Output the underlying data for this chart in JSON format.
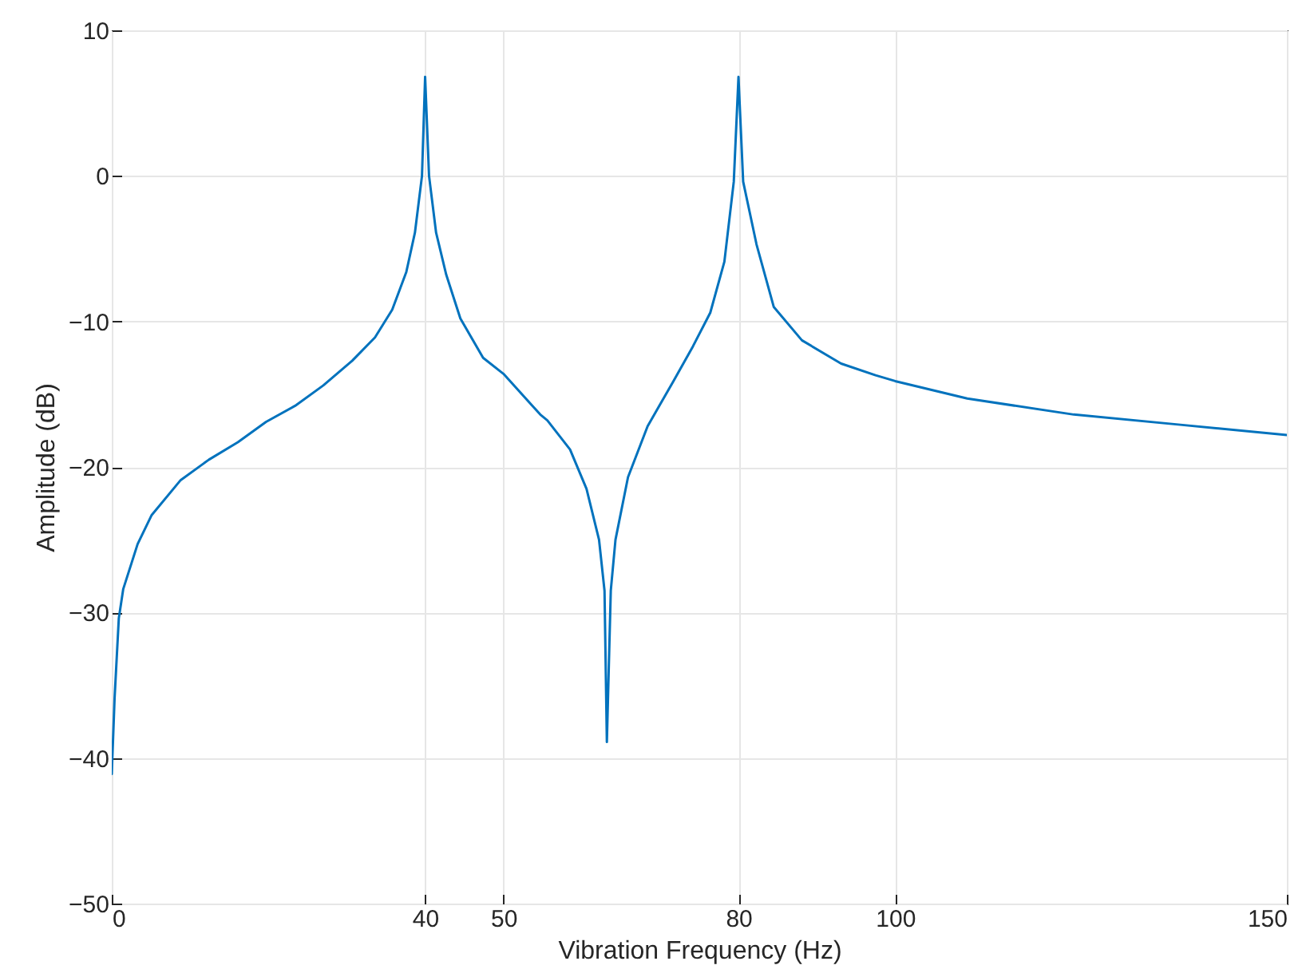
{
  "chart_data": {
    "type": "line",
    "xlabel": "Vibration Frequency (Hz)",
    "ylabel": "Amplitude (dB)",
    "x": [
      0,
      0.36,
      0.9,
      1.46,
      3.3,
      5.1,
      8.8,
      12.4,
      16.1,
      19.7,
      23.4,
      27,
      30.7,
      33.6,
      35.8,
      37.6,
      38.7,
      39.6,
      40,
      40.5,
      41.4,
      42.7,
      44.5,
      47.4,
      50,
      54.7,
      55.6,
      58.5,
      60.6,
      62.2,
      62.9,
      63.2,
      63.7,
      64.3,
      65.9,
      68.4,
      71.7,
      74.2,
      76.4,
      78.2,
      79.4,
      80,
      80.6,
      82.3,
      84.5,
      88.1,
      93.1,
      97.5,
      100,
      109.2,
      122.8,
      136.4,
      150
    ],
    "series": [
      {
        "color": "#0072bd",
        "values": [
          -41.1,
          -35.9,
          -30.4,
          -28.4,
          -25.3,
          -23.3,
          -20.9,
          -19.5,
          -18.3,
          -16.9,
          -15.8,
          -14.4,
          -12.7,
          -11.1,
          -9.2,
          -6.6,
          -3.9,
          0,
          6.8,
          0,
          -3.9,
          -6.8,
          -9.8,
          -12.5,
          -13.6,
          -16.4,
          -16.8,
          -18.8,
          -21.5,
          -25,
          -28.5,
          -38.9,
          -28.5,
          -25,
          -20.7,
          -17.2,
          -14.1,
          -11.7,
          -9.4,
          -5.9,
          -0.4,
          6.8,
          -0.4,
          -4.7,
          -9,
          -11.3,
          -12.9,
          -13.7,
          -14.1,
          -15.3,
          -16.4,
          -17.1,
          -17.8
        ]
      }
    ],
    "xlim": [
      0,
      150
    ],
    "xticks": [
      0,
      40,
      50,
      80,
      100,
      150
    ],
    "ylim": [
      -50,
      10
    ],
    "yticks": [
      -50,
      -40,
      -30,
      -20,
      -10,
      0,
      10
    ],
    "grid": true,
    "marker": "none",
    "line_style": "solid"
  }
}
